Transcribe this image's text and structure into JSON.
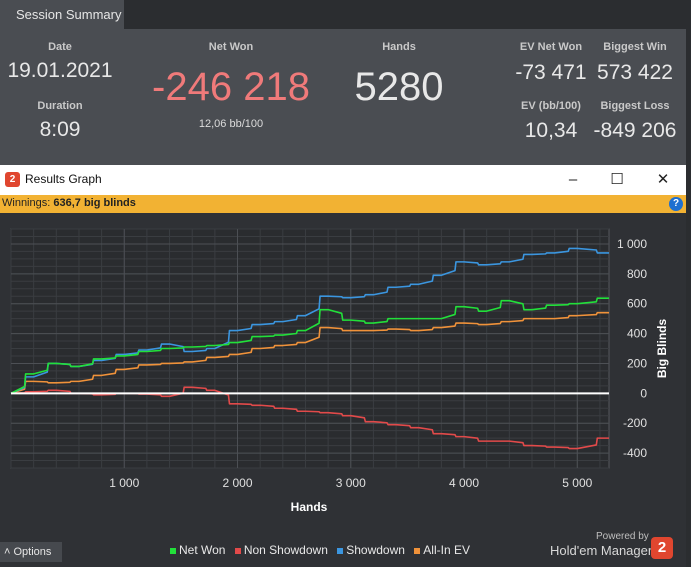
{
  "tab": {
    "label": "Session Summary"
  },
  "summary": {
    "date_label": "Date",
    "date_value": "19.01.2021",
    "duration_label": "Duration",
    "duration_value": "8:09",
    "netwon_label": "Net Won",
    "netwon_value": "-246 218",
    "netwon_sub": "12,06 bb/100",
    "hands_label": "Hands",
    "hands_value": "5280",
    "ev_net_won_label": "EV Net Won",
    "ev_net_won_value": "-73 471",
    "biggest_win_label": "Biggest Win",
    "biggest_win_value": "573 422",
    "ev_bb_label": "EV (bb/100)",
    "ev_bb_value": "10,34",
    "biggest_loss_label": "Biggest Loss",
    "biggest_loss_value": "-849 206",
    "colors": {
      "negative": "#f07a7a",
      "neutral": "#e8e8e8"
    }
  },
  "window": {
    "title": "Results Graph",
    "app_icon": "hm2-logo-icon",
    "minimize_label": "–",
    "maximize_label": "☐",
    "close_label": "✕"
  },
  "winnings_bar": {
    "label": "Winnings:",
    "value": "636,7 big blinds",
    "help_icon": "?"
  },
  "chart_data": {
    "type": "line",
    "xlabel": "Hands",
    "ylabel": "Big Blinds",
    "xlim": [
      0,
      5280
    ],
    "ylim": [
      -500,
      1100
    ],
    "xticks": [
      1000,
      2000,
      3000,
      4000,
      5000
    ],
    "xtick_labels": [
      "1 000",
      "2 000",
      "3 000",
      "4 000",
      "5 000"
    ],
    "yticks": [
      -400,
      -200,
      0,
      200,
      400,
      600,
      800,
      1000
    ],
    "ytick_labels": [
      "-400",
      "-200",
      "0",
      "200",
      "400",
      "600",
      "800",
      "1 000"
    ],
    "grid": true,
    "legend_position": "bottom",
    "x": [
      0,
      200,
      400,
      600,
      800,
      1000,
      1200,
      1400,
      1600,
      1800,
      2000,
      2200,
      2400,
      2600,
      2800,
      3000,
      3200,
      3400,
      3600,
      3800,
      4000,
      4200,
      4400,
      4600,
      4800,
      5000,
      5280
    ],
    "series": [
      {
        "name": "Net Won",
        "color": "#22e03a",
        "values": [
          0,
          130,
          200,
          180,
          230,
          250,
          280,
          300,
          310,
          320,
          340,
          380,
          390,
          420,
          560,
          490,
          470,
          500,
          500,
          500,
          580,
          550,
          620,
          560,
          590,
          600,
          636.7
        ]
      },
      {
        "name": "Non Showdown",
        "color": "#e24a4a",
        "values": [
          0,
          10,
          20,
          0,
          -10,
          0,
          -5,
          -20,
          40,
          20,
          -70,
          -80,
          -100,
          -120,
          -130,
          -150,
          -190,
          -210,
          -230,
          -270,
          -290,
          -320,
          -320,
          -350,
          -360,
          -370,
          -300
        ]
      },
      {
        "name": "Showdown",
        "color": "#3b96e0",
        "values": [
          0,
          110,
          200,
          180,
          220,
          260,
          290,
          330,
          280,
          300,
          420,
          460,
          480,
          520,
          650,
          640,
          660,
          710,
          730,
          790,
          880,
          860,
          880,
          930,
          940,
          970,
          940
        ]
      },
      {
        "name": "All-In EV",
        "color": "#f0923a",
        "values": [
          0,
          80,
          70,
          80,
          120,
          160,
          190,
          200,
          210,
          240,
          260,
          300,
          320,
          340,
          440,
          420,
          420,
          430,
          420,
          440,
          470,
          460,
          480,
          500,
          500,
          520,
          540
        ]
      }
    ]
  },
  "footer": {
    "options_label": "Options",
    "powered_by": "Powered by",
    "brand": "Hold'em Manager",
    "brand_icon": "2",
    "legend": [
      "Net Won",
      "Non Showdown",
      "Showdown",
      "All-In EV"
    ]
  }
}
